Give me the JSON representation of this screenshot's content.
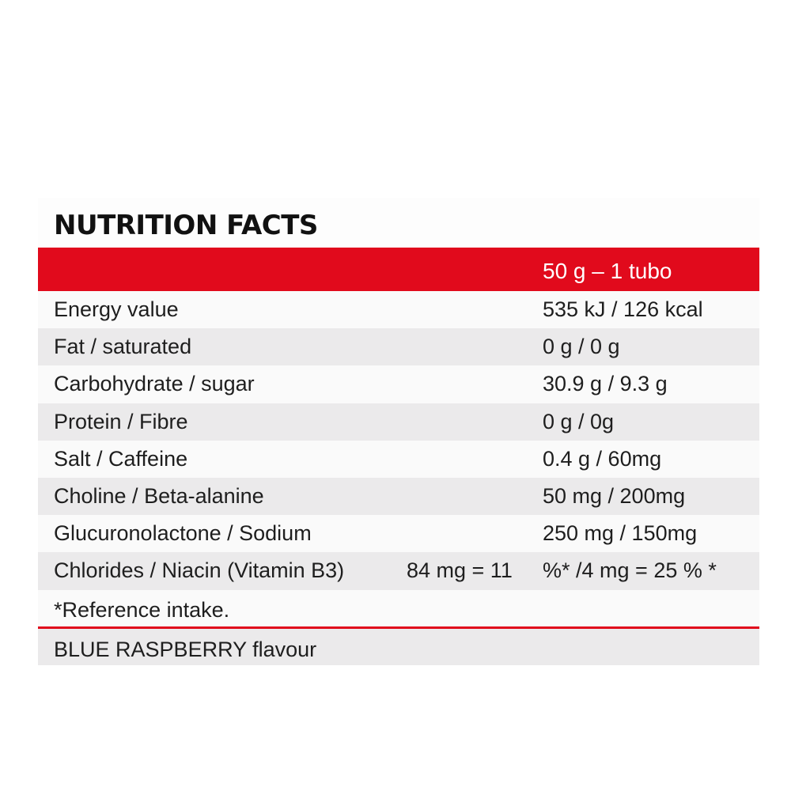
{
  "title": "NUTRITION FACTS",
  "serving": "50 g – 1 tubo",
  "rows": [
    {
      "name": "Energy value",
      "value": "535 kJ / 126 kcal"
    },
    {
      "name": "Fat / saturated",
      "value": "0 g / 0 g"
    },
    {
      "name": "Carbohydrate / sugar",
      "value": "30.9 g / 9.3 g"
    },
    {
      "name": "Protein / Fibre",
      "value": "0 g / 0g"
    },
    {
      "name": "Salt / Caffeine",
      "value": "0.4 g / 60mg"
    },
    {
      "name": "Choline / Beta-alanine",
      "value": "50 mg / 200mg"
    },
    {
      "name": "Glucuronolactone / Sodium",
      "value": "250 mg / 150mg"
    },
    {
      "name": "Chlorides / Niacin (Vitamin B3)",
      "mid": "84 mg = 11",
      "value": "%* /4 mg = 25 % *"
    }
  ],
  "footnote": "*Reference intake.",
  "flavour": "BLUE RASPBERRY flavour",
  "colors": {
    "accent": "#e10a1c",
    "shade": "#ebeaeb"
  }
}
